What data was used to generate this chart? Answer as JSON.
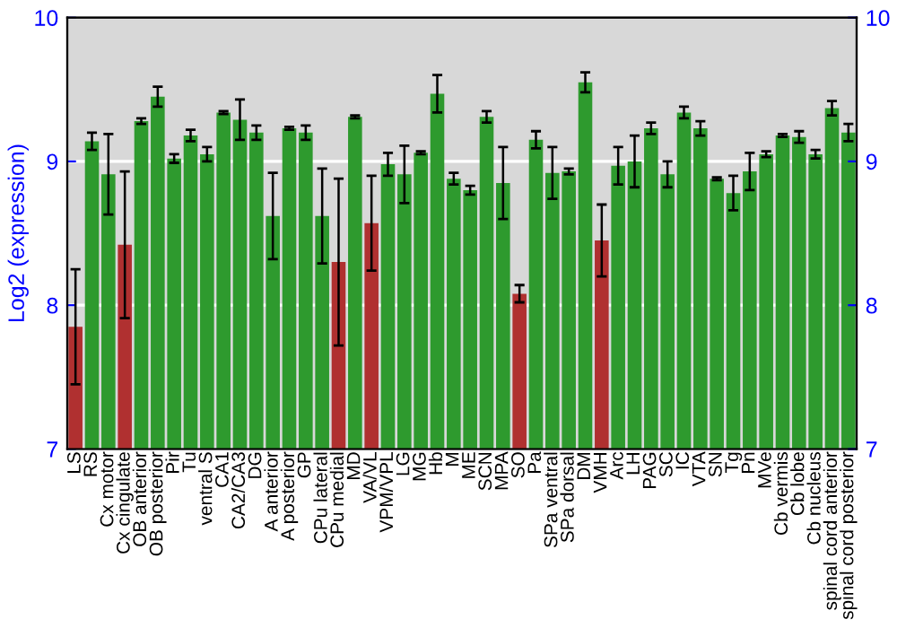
{
  "chart_data": {
    "type": "bar",
    "ylabel": "Log2 (expression)",
    "categories": [
      "LS",
      "RS",
      "Cx motor",
      "Cx cingulate",
      "OB anterior",
      "OB posterior",
      "Pir",
      "Tu",
      "ventral S",
      "CA1",
      "CA2/CA3",
      "DG",
      "A anterior",
      "A posterior",
      "GP",
      "CPu lateral",
      "CPu medial",
      "MD",
      "VA/VL",
      "VPM/VPL",
      "LG",
      "MG",
      "Hb",
      "M",
      "ME",
      "SCN",
      "MPA",
      "SO",
      "Pa",
      "SPa ventral",
      "SPa dorsal",
      "DM",
      "VMH",
      "Arc",
      "LH",
      "PAG",
      "SC",
      "IC",
      "VTA",
      "SN",
      "Tg",
      "Pn",
      "MVe",
      "Cb vermis",
      "Cb lobe",
      "Cb nucleus",
      "spinal cord anterior",
      "spinal cord posterior"
    ],
    "values": [
      7.85,
      9.14,
      8.91,
      8.42,
      9.28,
      9.45,
      9.02,
      9.18,
      9.05,
      9.34,
      9.29,
      9.2,
      8.62,
      9.23,
      9.2,
      8.62,
      8.3,
      9.31,
      8.57,
      8.98,
      8.91,
      9.06,
      9.47,
      8.88,
      8.8,
      9.31,
      8.85,
      8.08,
      9.15,
      8.92,
      8.93,
      9.55,
      8.45,
      8.97,
      9.0,
      9.23,
      8.91,
      9.34,
      9.23,
      8.88,
      8.78,
      8.93,
      9.05,
      9.18,
      9.17,
      9.05,
      9.37,
      9.2
    ],
    "errors": [
      0.4,
      0.06,
      0.28,
      0.51,
      0.02,
      0.07,
      0.03,
      0.04,
      0.05,
      0.01,
      0.14,
      0.05,
      0.3,
      0.01,
      0.05,
      0.33,
      0.58,
      0.01,
      0.33,
      0.08,
      0.2,
      0.01,
      0.13,
      0.04,
      0.03,
      0.04,
      0.25,
      0.06,
      0.06,
      0.18,
      0.02,
      0.07,
      0.25,
      0.13,
      0.18,
      0.04,
      0.09,
      0.04,
      0.05,
      0.01,
      0.12,
      0.13,
      0.02,
      0.01,
      0.04,
      0.03,
      0.05,
      0.06
    ],
    "colors": [
      "#b03030",
      "#2e9a2e",
      "#2e9a2e",
      "#b03030",
      "#2e9a2e",
      "#2e9a2e",
      "#2e9a2e",
      "#2e9a2e",
      "#2e9a2e",
      "#2e9a2e",
      "#2e9a2e",
      "#2e9a2e",
      "#2e9a2e",
      "#2e9a2e",
      "#2e9a2e",
      "#2e9a2e",
      "#b03030",
      "#2e9a2e",
      "#b03030",
      "#2e9a2e",
      "#2e9a2e",
      "#2e9a2e",
      "#2e9a2e",
      "#2e9a2e",
      "#2e9a2e",
      "#2e9a2e",
      "#2e9a2e",
      "#b03030",
      "#2e9a2e",
      "#2e9a2e",
      "#2e9a2e",
      "#2e9a2e",
      "#b03030",
      "#2e9a2e",
      "#2e9a2e",
      "#2e9a2e",
      "#2e9a2e",
      "#2e9a2e",
      "#2e9a2e",
      "#2e9a2e",
      "#2e9a2e",
      "#2e9a2e",
      "#2e9a2e",
      "#2e9a2e",
      "#2e9a2e",
      "#2e9a2e",
      "#2e9a2e",
      "#2e9a2e"
    ],
    "ylim": [
      7,
      10
    ],
    "yticks": [
      7,
      8,
      9,
      10
    ],
    "y2lim": [
      7,
      10
    ],
    "y2ticks": [
      7,
      8,
      9,
      10
    ],
    "grid": "y"
  }
}
